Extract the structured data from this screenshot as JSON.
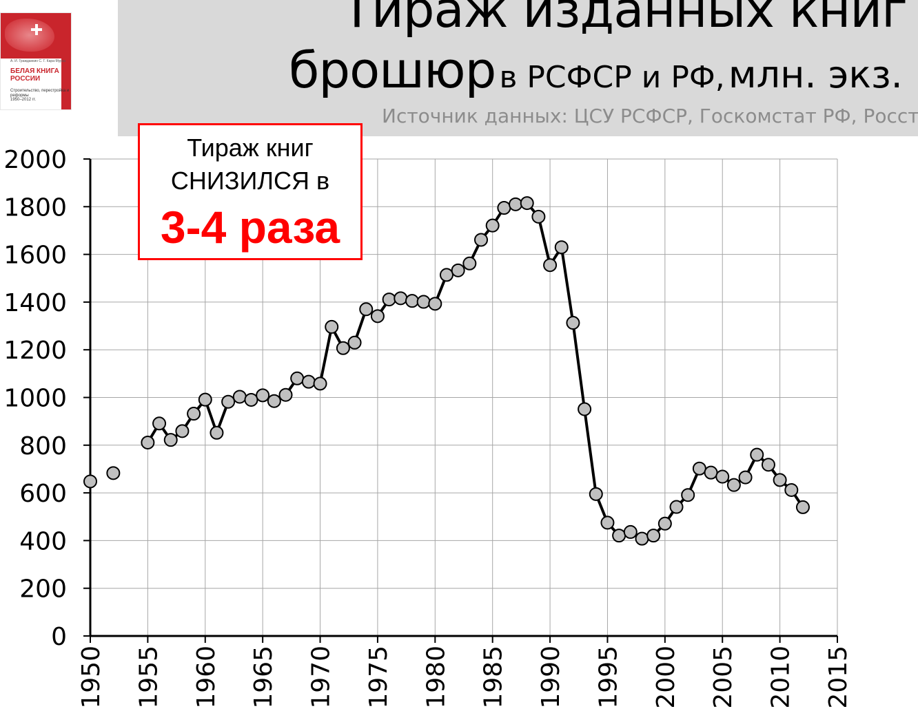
{
  "title": {
    "line1": "Тираж изданных книг и",
    "line2_main": "брошюр",
    "line2_sub": "в РСФСР и РФ,",
    "line2_units": "млн. экз."
  },
  "source": "Источник данных: ЦСУ РСФСР, Госкомстат РФ, Росстат",
  "callout": {
    "line1": "Тираж книг",
    "line2": "СНИЗИЛСЯ в",
    "highlight": "3-4 раза"
  },
  "book_cover": {
    "authors": "А. И. Гражданкин С. Г. Кара-Мурза",
    "title": "БЕЛАЯ КНИГА РОССИИ",
    "subtitle": "Строительство, перестройка и реформы",
    "years": "1950–2012 гг."
  },
  "colors": {
    "header_band": "#d9d9d9",
    "callout_border": "#ff0000",
    "callout_highlight": "#ff0000",
    "line": "#000000",
    "marker_fill": "#c0c0c0",
    "grid": "#a6a6a6"
  },
  "chart_data": {
    "type": "line",
    "xlim": [
      1950,
      2015
    ],
    "ylim": [
      0,
      2000
    ],
    "xticks": [
      1950,
      1955,
      1960,
      1965,
      1970,
      1975,
      1980,
      1985,
      1990,
      1995,
      2000,
      2005,
      2010,
      2015
    ],
    "yticks": [
      0,
      200,
      400,
      600,
      800,
      1000,
      1200,
      1400,
      1600,
      1800,
      2000
    ],
    "grid": true,
    "legend": "none",
    "marker": "circle",
    "series": [
      {
        "x": [
          1950,
          1952,
          1955,
          1956,
          1957,
          1958,
          1959,
          1960,
          1961,
          1962,
          1963,
          1964,
          1965,
          1966,
          1967,
          1968,
          1969,
          1970,
          1971,
          1972,
          1973,
          1974,
          1975,
          1976,
          1977,
          1978,
          1979,
          1980,
          1981,
          1982,
          1983,
          1984,
          1985,
          1986,
          1987,
          1988,
          1989,
          1990,
          1991,
          1992,
          1993,
          1994,
          1995,
          1996,
          1997,
          1998,
          1999,
          2000,
          2001,
          2002,
          2003,
          2004,
          2005,
          2006,
          2007,
          2008,
          2009,
          2010,
          2011,
          2012
        ],
        "y": [
          648,
          683,
          811,
          891,
          822,
          859,
          932,
          991,
          852,
          982,
          1003,
          990,
          1009,
          985,
          1011,
          1080,
          1066,
          1058,
          1296,
          1207,
          1230,
          1370,
          1341,
          1411,
          1416,
          1405,
          1401,
          1393,
          1514,
          1533,
          1562,
          1661,
          1721,
          1795,
          1810,
          1815,
          1758,
          1555,
          1630,
          1313,
          951,
          595,
          475,
          421,
          436,
          408,
          421,
          471,
          541,
          591,
          702,
          685,
          668,
          633,
          665,
          760,
          718,
          654,
          612,
          540
        ],
        "segments_connected_from": 1955
      }
    ]
  }
}
